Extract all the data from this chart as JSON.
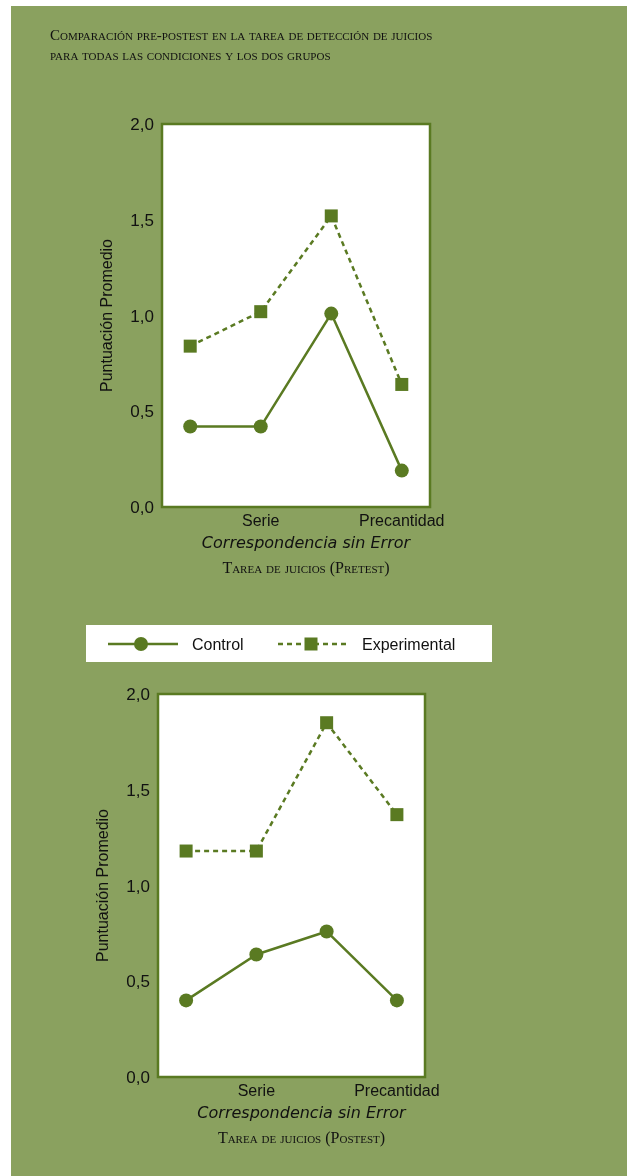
{
  "chart_data": [
    {
      "type": "line",
      "title": "Comparación pre-postest en la tarea de  detección de juicios\npara todas las condiciones y los dos grupos",
      "categories": [
        null,
        "Serie",
        null,
        "Precantidad"
      ],
      "xlabel": "Tarea de juicios (Pretest)",
      "ylabel": "Puntuación Promedio",
      "annotations": [
        "Correspondencia sin Error"
      ],
      "ylim": [
        0,
        2
      ],
      "yticks": [
        {
          "value": 0,
          "label": "0,0"
        },
        {
          "value": 0.5,
          "label": "0,5"
        },
        {
          "value": 1,
          "label": "1,0"
        },
        {
          "value": 1.5,
          "label": "1,5"
        },
        {
          "value": 2,
          "label": "2,0"
        }
      ],
      "legend": "bottom",
      "grid": false,
      "series": [
        {
          "name": "Control",
          "color": "#5a7a22",
          "marker": "circle",
          "line_style": "solid",
          "values": [
            0.42,
            0.42,
            1.01,
            0.19
          ]
        },
        {
          "name": "Experimental",
          "color": "#5a7a22",
          "marker": "square",
          "line_style": "dashed",
          "values": [
            0.84,
            1.02,
            1.52,
            0.64
          ]
        }
      ]
    },
    {
      "type": "line",
      "categories": [
        null,
        "Serie",
        null,
        "Precantidad"
      ],
      "xlabel": "Tarea de juicios (Postest)",
      "ylabel": "Puntuación Promedio",
      "annotations": [
        "Correspondencia sin Error"
      ],
      "ylim": [
        0,
        2
      ],
      "yticks": [
        {
          "value": 0,
          "label": "0,0"
        },
        {
          "value": 0.5,
          "label": "0,5"
        },
        {
          "value": 1,
          "label": "1,0"
        },
        {
          "value": 1.5,
          "label": "1,5"
        },
        {
          "value": 2,
          "label": "2,0"
        }
      ],
      "grid": false,
      "series": [
        {
          "color": "#5a7a22",
          "marker": "circle",
          "line_style": "solid",
          "values": [
            0.4,
            0.64,
            0.76,
            0.4
          ]
        },
        {
          "color": "#5a7a22",
          "marker": "square",
          "line_style": "dashed",
          "values": [
            1.18,
            1.18,
            1.85,
            1.37
          ]
        }
      ]
    }
  ]
}
